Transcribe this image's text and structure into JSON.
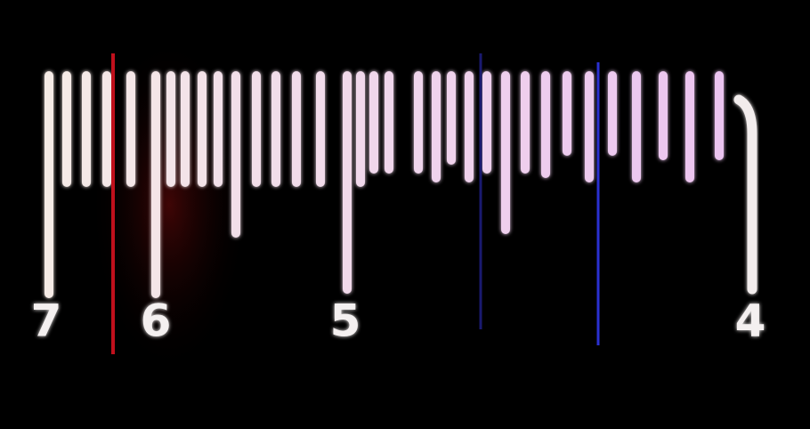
{
  "dial": {
    "labels": [
      "7",
      "6",
      "5",
      "4"
    ]
  }
}
